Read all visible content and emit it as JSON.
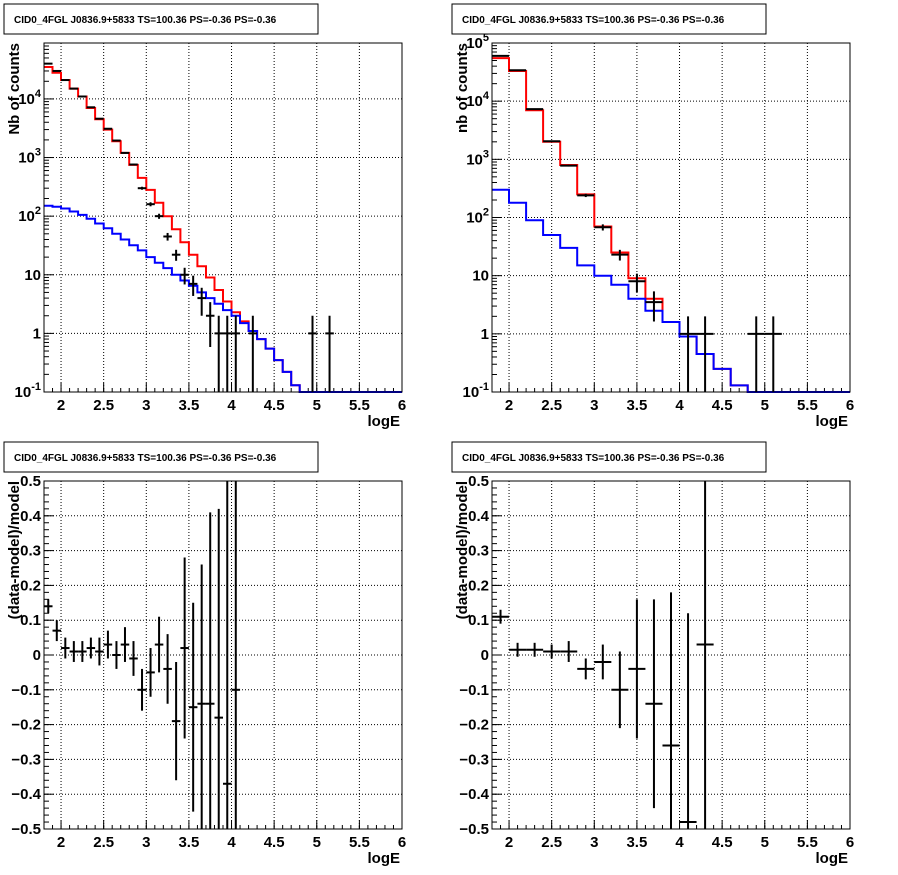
{
  "colors": {
    "data": "#000000",
    "total_model": "#ff0000",
    "source_model": "#0000ff",
    "grid": "#000000",
    "frame": "#000000",
    "background": "#ffffff"
  },
  "chart_data": [
    {
      "type": "line",
      "title": "CID0_4FGL J0836.9+5833 TS=100.36 PS=-0.36 PS=-0.36",
      "xlabel": "logE",
      "ylabel": "Nb of counts",
      "xlim": [
        1.8,
        6.0
      ],
      "ylim": [
        0.1,
        90000
      ],
      "yscale": "log",
      "grid": true,
      "xticks": [
        "2",
        "2.5",
        "3",
        "3.5",
        "4",
        "4.5",
        "5",
        "5.5",
        "6"
      ],
      "yticks": [
        "10⁻¹",
        "1",
        "10",
        "10²",
        "10³",
        "10⁴"
      ],
      "bin_width": 0.1,
      "bin_edges": [
        1.8,
        1.9,
        2.0,
        2.1,
        2.2,
        2.3,
        2.4,
        2.5,
        2.6,
        2.7,
        2.8,
        2.9,
        3.0,
        3.1,
        3.2,
        3.3,
        3.4,
        3.5,
        3.6,
        3.7,
        3.8,
        3.9,
        4.0,
        4.1,
        4.2,
        4.3,
        4.4,
        4.5,
        4.6,
        4.7,
        4.8,
        4.9,
        5.0,
        5.1,
        5.2,
        5.3,
        5.4,
        5.5,
        5.6,
        5.7,
        5.8,
        5.9,
        6.0
      ],
      "series": [
        {
          "role": "total_model",
          "values": [
            35000,
            28000,
            21000,
            15000,
            11000,
            7000,
            4500,
            3000,
            1900,
            1200,
            750,
            450,
            280,
            170,
            100,
            60,
            36,
            22,
            14,
            9,
            5.5,
            3.5,
            2.3,
            1.6,
            1.1,
            0.8,
            0.55,
            0.35,
            0.22,
            0.13,
            0.1,
            0.1,
            0.1,
            0.1,
            0.1,
            0.1,
            0.1,
            0.1,
            0.1,
            0.1,
            0.1,
            0.1
          ]
        },
        {
          "role": "source_model",
          "values": [
            150,
            145,
            135,
            120,
            105,
            90,
            75,
            62,
            50,
            40,
            32,
            26,
            20,
            16,
            13,
            10,
            8,
            6.5,
            5,
            4,
            3.2,
            2.5,
            2,
            1.5,
            1.1,
            0.8,
            0.55,
            0.35,
            0.22,
            0.13,
            0.1,
            0.1,
            0.1,
            0.1,
            0.1,
            0.1,
            0.1,
            0.1,
            0.1,
            0.1,
            0.1,
            0.1
          ]
        },
        {
          "role": "data",
          "x": [
            1.85,
            1.95,
            2.05,
            2.15,
            2.25,
            2.35,
            2.45,
            2.55,
            2.65,
            2.75,
            2.85,
            2.95,
            3.05,
            3.15,
            3.25,
            3.35,
            3.45,
            3.55,
            3.65,
            3.75,
            3.85,
            3.95,
            4.05,
            4.25,
            4.95,
            5.15
          ],
          "y": [
            40000,
            30000,
            21000,
            15000,
            11000,
            7200,
            4600,
            3100,
            1950,
            1200,
            760,
            300,
            160,
            100,
            45,
            22,
            10,
            7,
            4,
            2,
            1,
            1,
            1,
            1,
            1,
            1
          ]
        }
      ]
    },
    {
      "type": "line",
      "title": "CID0_4FGL J0836.9+5833 TS=100.36 PS=-0.36 PS=-0.36",
      "xlabel": "logE",
      "ylabel": "nb of counts",
      "xlim": [
        1.8,
        6.0
      ],
      "ylim": [
        0.1,
        100000
      ],
      "yscale": "log",
      "grid": true,
      "xticks": [
        "2",
        "2.5",
        "3",
        "3.5",
        "4",
        "4.5",
        "5",
        "5.5",
        "6"
      ],
      "yticks": [
        "10⁻¹",
        "1",
        "10",
        "10²",
        "10³",
        "10⁴",
        "10⁵"
      ],
      "bin_width": 0.2,
      "bin_edges": [
        1.8,
        2.0,
        2.2,
        2.4,
        2.6,
        2.8,
        3.0,
        3.2,
        3.4,
        3.6,
        3.8,
        4.0,
        4.2,
        4.4,
        4.6,
        4.8,
        5.0,
        5.2,
        5.4,
        5.6,
        5.8,
        6.0
      ],
      "series": [
        {
          "role": "total_model",
          "values": [
            55000,
            33000,
            7000,
            2000,
            800,
            250,
            70,
            25,
            9,
            4,
            1.6,
            0.9,
            0.45,
            0.25,
            0.13,
            0.1,
            0.1,
            0.1,
            0.1,
            0.1,
            0.1
          ]
        },
        {
          "role": "source_model",
          "values": [
            300,
            180,
            90,
            50,
            30,
            15,
            10,
            7,
            4,
            2.5,
            1.6,
            0.9,
            0.45,
            0.25,
            0.13,
            0.1,
            0.1,
            0.1,
            0.1,
            0.1,
            0.1
          ]
        },
        {
          "role": "data",
          "x": [
            1.9,
            2.1,
            2.3,
            2.5,
            2.7,
            2.9,
            3.1,
            3.3,
            3.5,
            3.7,
            4.1,
            4.3,
            4.9,
            5.1
          ],
          "y": [
            60000,
            34000,
            7300,
            2050,
            780,
            240,
            68,
            23,
            8,
            3.5,
            1,
            1,
            1,
            1
          ]
        }
      ]
    },
    {
      "type": "scatter",
      "title": "CID0_4FGL J0836.9+5833 TS=100.36 PS=-0.36 PS=-0.36",
      "xlabel": "logE",
      "ylabel": "(data-model)/model",
      "xlim": [
        1.8,
        6.0
      ],
      "ylim": [
        -0.5,
        0.5
      ],
      "grid": true,
      "xticks": [
        "2",
        "2.5",
        "3",
        "3.5",
        "4",
        "4.5",
        "5",
        "5.5",
        "6"
      ],
      "yticks": [
        "−0.5",
        "−0.4",
        "−0.3",
        "−0.2",
        "−0.1",
        "0",
        "0.1",
        "0.2",
        "0.3",
        "0.4",
        "0.5"
      ],
      "bin_width": 0.1,
      "series": [
        {
          "role": "data",
          "x": [
            1.85,
            1.95,
            2.05,
            2.15,
            2.25,
            2.35,
            2.45,
            2.55,
            2.65,
            2.75,
            2.85,
            2.95,
            3.05,
            3.15,
            3.25,
            3.35,
            3.45,
            3.55,
            3.65,
            3.75,
            3.85,
            3.95,
            4.05
          ],
          "y": [
            0.14,
            0.07,
            0.02,
            0.01,
            0.01,
            0.02,
            0.01,
            0.03,
            0.0,
            0.03,
            -0.01,
            -0.1,
            -0.05,
            0.03,
            -0.04,
            -0.19,
            0.02,
            -0.15,
            -0.14,
            -0.14,
            -0.18,
            -0.37,
            -0.1
          ],
          "err": [
            0.02,
            0.03,
            0.03,
            0.03,
            0.03,
            0.03,
            0.04,
            0.04,
            0.04,
            0.05,
            0.05,
            0.06,
            0.07,
            0.08,
            0.1,
            0.17,
            0.26,
            0.3,
            0.4,
            0.55,
            0.6,
            0.9,
            0.9
          ]
        }
      ]
    },
    {
      "type": "scatter",
      "title": "CID0_4FGL J0836.9+5833 TS=100.36 PS=-0.36 PS=-0.36",
      "xlabel": "logE",
      "ylabel": "(data-model)/model",
      "xlim": [
        1.8,
        6.0
      ],
      "ylim": [
        -0.5,
        0.5
      ],
      "grid": true,
      "xticks": [
        "2",
        "2.5",
        "3",
        "3.5",
        "4",
        "4.5",
        "5",
        "5.5",
        "6"
      ],
      "yticks": [
        "−0.5",
        "−0.4",
        "−0.3",
        "−0.2",
        "−0.1",
        "0",
        "0.1",
        "0.2",
        "0.3",
        "0.4",
        "0.5"
      ],
      "bin_width": 0.2,
      "series": [
        {
          "role": "data",
          "x": [
            1.9,
            2.1,
            2.3,
            2.5,
            2.7,
            2.9,
            3.1,
            3.3,
            3.5,
            3.7,
            3.9,
            4.1,
            4.3
          ],
          "y": [
            0.11,
            0.015,
            0.015,
            0.01,
            0.01,
            -0.04,
            -0.02,
            -0.1,
            -0.04,
            -0.14,
            -0.26,
            -0.48,
            0.03
          ],
          "err": [
            0.02,
            0.02,
            0.02,
            0.02,
            0.03,
            0.03,
            0.05,
            0.11,
            0.2,
            0.3,
            0.44,
            0.6,
            0.9
          ]
        }
      ]
    }
  ]
}
